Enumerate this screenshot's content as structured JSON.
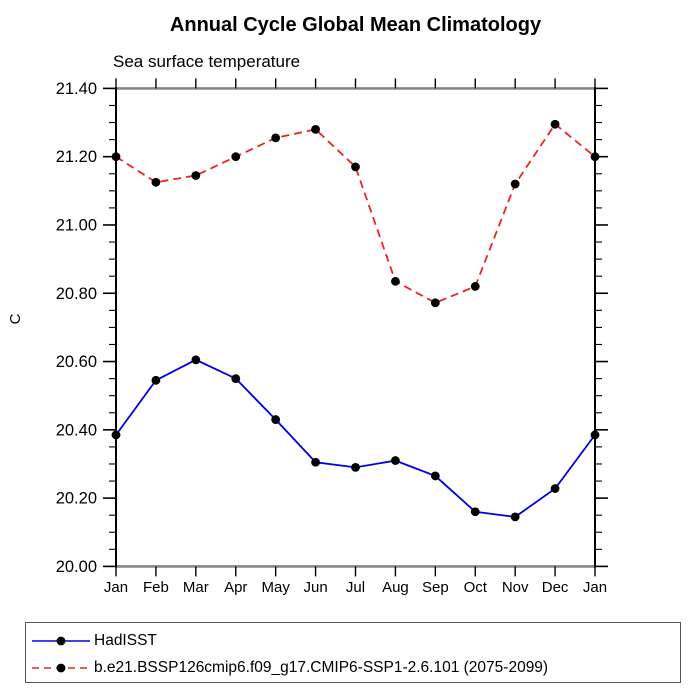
{
  "header": {
    "title": "Annual Cycle Global Mean Climatology",
    "subtitle": "Sea surface temperature"
  },
  "chart_data": {
    "type": "line",
    "title": "Annual Cycle Global Mean Climatology",
    "subtitle": "Sea surface temperature",
    "ylabel": "C",
    "xlabel": "",
    "categories": [
      "Jan",
      "Feb",
      "Mar",
      "Apr",
      "May",
      "Jun",
      "Jul",
      "Aug",
      "Sep",
      "Oct",
      "Nov",
      "Dec",
      "Jan"
    ],
    "ylim": [
      20.0,
      21.4
    ],
    "ytick_interval": 0.2,
    "yminor_interval": 0.05,
    "grid": "off",
    "legend_position": "bottom-left",
    "series": [
      {
        "name": "HadISST",
        "color": "#0000dd",
        "line_style": "solid",
        "marker": "filled-circle",
        "marker_color": "#000000",
        "values": [
          20.385,
          20.545,
          20.605,
          20.55,
          20.43,
          20.305,
          20.29,
          20.31,
          20.265,
          20.16,
          20.145,
          20.228,
          20.385
        ]
      },
      {
        "name": "b.e21.BSSP126cmip6.f09_g17.CMIP6-SSP1-2.6.101 (2075-2099)",
        "color": "#ee2222",
        "line_style": "dashed",
        "marker": "filled-circle",
        "marker_color": "#000000",
        "values": [
          21.2,
          21.125,
          21.145,
          21.2,
          21.255,
          21.28,
          21.17,
          20.835,
          20.772,
          20.82,
          21.12,
          21.295,
          21.2
        ]
      }
    ]
  },
  "colors": {
    "axis_horizontal_border": "#888888",
    "axis_vertical_border": "#000000",
    "tick": "#000000",
    "text": "#000000"
  }
}
